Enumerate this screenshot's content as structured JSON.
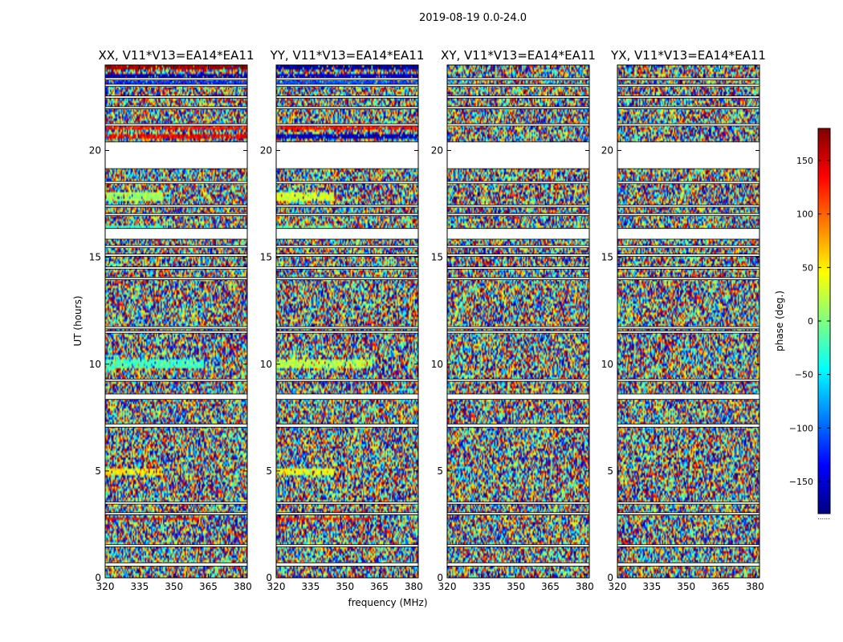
{
  "figure_title": "2019-08-19 0.0-24.0",
  "chart_data": [
    {
      "type": "heatmap",
      "title": "XX, V11*V13=EA14*EA11",
      "xlabel": "",
      "ylabel": "UT (hours)",
      "xlim": [
        320,
        382
      ],
      "ylim": [
        0,
        24
      ],
      "xticks": [
        320,
        335,
        350,
        365,
        380
      ],
      "yticks": [
        0,
        5,
        10,
        15,
        20
      ],
      "value_range": [
        -180,
        180
      ],
      "gaps_hours": [
        [
          0.55,
          0.7
        ],
        [
          1.45,
          1.55
        ],
        [
          2.95,
          3.05
        ],
        [
          3.45,
          3.55
        ],
        [
          7.05,
          7.2
        ],
        [
          8.35,
          8.6
        ],
        [
          9.2,
          9.3
        ],
        [
          11.45,
          11.55
        ],
        [
          11.65,
          11.75
        ],
        [
          13.95,
          14.05
        ],
        [
          14.45,
          14.55
        ],
        [
          15.05,
          15.15
        ],
        [
          15.45,
          15.55
        ],
        [
          15.85,
          16.35
        ],
        [
          16.95,
          17.05
        ],
        [
          17.35,
          17.45
        ],
        [
          18.45,
          18.55
        ],
        [
          19.15,
          20.4
        ],
        [
          21.15,
          21.25
        ],
        [
          21.95,
          22.05
        ],
        [
          22.45,
          22.55
        ],
        [
          23.0,
          23.1
        ],
        [
          23.3,
          23.4
        ]
      ],
      "features": [
        {
          "label": "phase band",
          "from": 2.7,
          "to": 2.85,
          "value": 140,
          "fmax": 361
        },
        {
          "label": "phase band",
          "from": 4.8,
          "to": 5.1,
          "value": 50,
          "fmax": 345
        },
        {
          "label": "phase band",
          "from": 9.8,
          "to": 10.2,
          "value": -20,
          "fmax": 363
        },
        {
          "label": "phase band",
          "from": 16.2,
          "to": 16.5,
          "value": -30,
          "fmax": 345
        },
        {
          "label": "phase band",
          "from": 17.6,
          "to": 18.0,
          "value": 10,
          "fmax": 345
        },
        {
          "label": "phase band",
          "from": 20.55,
          "to": 20.8,
          "value": 140,
          "fmax": 382
        },
        {
          "label": "phase band",
          "from": 20.95,
          "to": 21.15,
          "value": 130,
          "fmax": 382
        },
        {
          "label": "phase band",
          "from": 23.1,
          "to": 23.3,
          "value": -120,
          "fmax": 382
        },
        {
          "label": "phase band",
          "from": 23.4,
          "to": 23.55,
          "value": -160,
          "fmax": 382
        },
        {
          "label": "phase band",
          "from": 23.75,
          "to": 24.0,
          "value": 170,
          "fmax": 382
        }
      ]
    },
    {
      "type": "heatmap",
      "title": "YY, V11*V13=EA14*EA11",
      "xlabel": "frequency (MHz)",
      "ylabel": "",
      "xlim": [
        320,
        382
      ],
      "ylim": [
        0,
        24
      ],
      "xticks": [
        320,
        335,
        350,
        365,
        380
      ],
      "yticks": [
        0,
        5,
        10,
        15,
        20
      ],
      "value_range": [
        -180,
        180
      ],
      "gaps_hours": [
        [
          0.55,
          0.7
        ],
        [
          1.45,
          1.55
        ],
        [
          2.95,
          3.05
        ],
        [
          3.45,
          3.55
        ],
        [
          7.05,
          7.2
        ],
        [
          8.35,
          8.6
        ],
        [
          9.2,
          9.3
        ],
        [
          11.45,
          11.55
        ],
        [
          11.65,
          11.75
        ],
        [
          13.95,
          14.05
        ],
        [
          14.45,
          14.55
        ],
        [
          15.05,
          15.15
        ],
        [
          15.45,
          15.55
        ],
        [
          15.85,
          16.35
        ],
        [
          16.95,
          17.05
        ],
        [
          17.35,
          17.45
        ],
        [
          18.45,
          18.55
        ],
        [
          19.15,
          20.4
        ],
        [
          21.15,
          21.25
        ],
        [
          21.95,
          22.05
        ],
        [
          22.45,
          22.55
        ],
        [
          23.0,
          23.1
        ],
        [
          23.3,
          23.4
        ]
      ],
      "features": [
        {
          "label": "phase band",
          "from": 2.7,
          "to": 2.85,
          "value": 130,
          "fmax": 361
        },
        {
          "label": "phase band",
          "from": 4.8,
          "to": 5.1,
          "value": 40,
          "fmax": 345
        },
        {
          "label": "phase band",
          "from": 9.8,
          "to": 10.2,
          "value": 20,
          "fmax": 362
        },
        {
          "label": "phase band",
          "from": 16.2,
          "to": 16.5,
          "value": -10,
          "fmax": 345
        },
        {
          "label": "phase band",
          "from": 17.6,
          "to": 18.0,
          "value": 30,
          "fmax": 345
        },
        {
          "label": "phase band",
          "from": 20.55,
          "to": 20.8,
          "value": -160,
          "fmax": 382
        },
        {
          "label": "phase band",
          "from": 20.95,
          "to": 21.15,
          "value": 130,
          "fmax": 382
        },
        {
          "label": "phase band",
          "from": 23.1,
          "to": 23.3,
          "value": -110,
          "fmax": 382
        },
        {
          "label": "phase band",
          "from": 23.4,
          "to": 23.55,
          "value": -150,
          "fmax": 382
        },
        {
          "label": "phase band",
          "from": 23.75,
          "to": 24.0,
          "value": -170,
          "fmax": 382
        }
      ]
    },
    {
      "type": "heatmap",
      "title": "XY, V11*V13=EA14*EA11",
      "xlabel": "",
      "ylabel": "",
      "xlim": [
        320,
        382
      ],
      "ylim": [
        0,
        24
      ],
      "xticks": [
        320,
        335,
        350,
        365,
        380
      ],
      "yticks": [
        0,
        5,
        10,
        15,
        20
      ],
      "value_range": [
        -180,
        180
      ],
      "gaps_hours": [
        [
          0.55,
          0.7
        ],
        [
          1.45,
          1.55
        ],
        [
          2.95,
          3.05
        ],
        [
          3.45,
          3.55
        ],
        [
          7.05,
          7.2
        ],
        [
          8.35,
          8.6
        ],
        [
          9.2,
          9.3
        ],
        [
          11.45,
          11.55
        ],
        [
          11.65,
          11.75
        ],
        [
          13.95,
          14.05
        ],
        [
          14.45,
          14.55
        ],
        [
          15.05,
          15.15
        ],
        [
          15.45,
          15.55
        ],
        [
          15.85,
          16.35
        ],
        [
          16.95,
          17.05
        ],
        [
          17.35,
          17.45
        ],
        [
          18.45,
          18.55
        ],
        [
          19.15,
          20.4
        ],
        [
          21.15,
          21.25
        ],
        [
          21.95,
          22.05
        ],
        [
          22.45,
          22.55
        ],
        [
          23.0,
          23.1
        ],
        [
          23.3,
          23.4
        ]
      ],
      "features": []
    },
    {
      "type": "heatmap",
      "title": "YX, V11*V13=EA14*EA11",
      "xlabel": "",
      "ylabel": "",
      "xlim": [
        320,
        382
      ],
      "ylim": [
        0,
        24
      ],
      "xticks": [
        320,
        335,
        350,
        365,
        380
      ],
      "yticks": [
        0,
        5,
        10,
        15,
        20
      ],
      "value_range": [
        -180,
        180
      ],
      "gaps_hours": [
        [
          0.55,
          0.7
        ],
        [
          1.45,
          1.55
        ],
        [
          2.95,
          3.05
        ],
        [
          3.45,
          3.55
        ],
        [
          7.05,
          7.2
        ],
        [
          8.35,
          8.6
        ],
        [
          9.2,
          9.3
        ],
        [
          11.45,
          11.55
        ],
        [
          11.65,
          11.75
        ],
        [
          13.95,
          14.05
        ],
        [
          14.45,
          14.55
        ],
        [
          15.05,
          15.15
        ],
        [
          15.45,
          15.55
        ],
        [
          15.85,
          16.35
        ],
        [
          16.95,
          17.05
        ],
        [
          17.35,
          17.45
        ],
        [
          18.45,
          18.55
        ],
        [
          19.15,
          20.4
        ],
        [
          21.15,
          21.25
        ],
        [
          21.95,
          22.05
        ],
        [
          22.45,
          22.55
        ],
        [
          23.0,
          23.1
        ],
        [
          23.3,
          23.4
        ]
      ],
      "features": []
    }
  ],
  "colorbar": {
    "label": "phase (deg.)",
    "range": [
      -180,
      180
    ],
    "ticks": [
      -150,
      -100,
      -50,
      0,
      50,
      100,
      150
    ],
    "tick_labels": [
      "−150",
      "−100",
      "−50",
      "0",
      "50",
      "100",
      "150"
    ],
    "footer": "......"
  }
}
